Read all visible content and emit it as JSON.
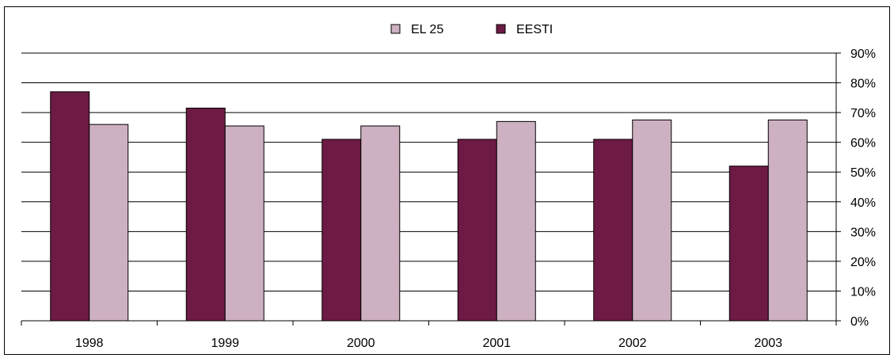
{
  "chart_data": {
    "type": "bar",
    "categories": [
      "1998",
      "1999",
      "2000",
      "2001",
      "2002",
      "2003"
    ],
    "series": [
      {
        "name": "EESTI",
        "color": "#6d1a44",
        "values": [
          77,
          71.5,
          61,
          61,
          61,
          52
        ]
      },
      {
        "name": "EL 25",
        "color": "#cdb0c1",
        "values": [
          66,
          65.5,
          65.5,
          67,
          67.5,
          67.5
        ]
      }
    ],
    "legend_order": [
      "EL 25",
      "EESTI"
    ],
    "legend_position": "top-center",
    "ylim": [
      0,
      90
    ],
    "yticks": [
      0,
      10,
      20,
      30,
      40,
      50,
      60,
      70,
      80,
      90
    ],
    "ytick_labels": [
      "0%",
      "10%",
      "20%",
      "30%",
      "40%",
      "50%",
      "60%",
      "70%",
      "80%",
      "90%"
    ],
    "y_axis_side": "right",
    "grid": true
  }
}
